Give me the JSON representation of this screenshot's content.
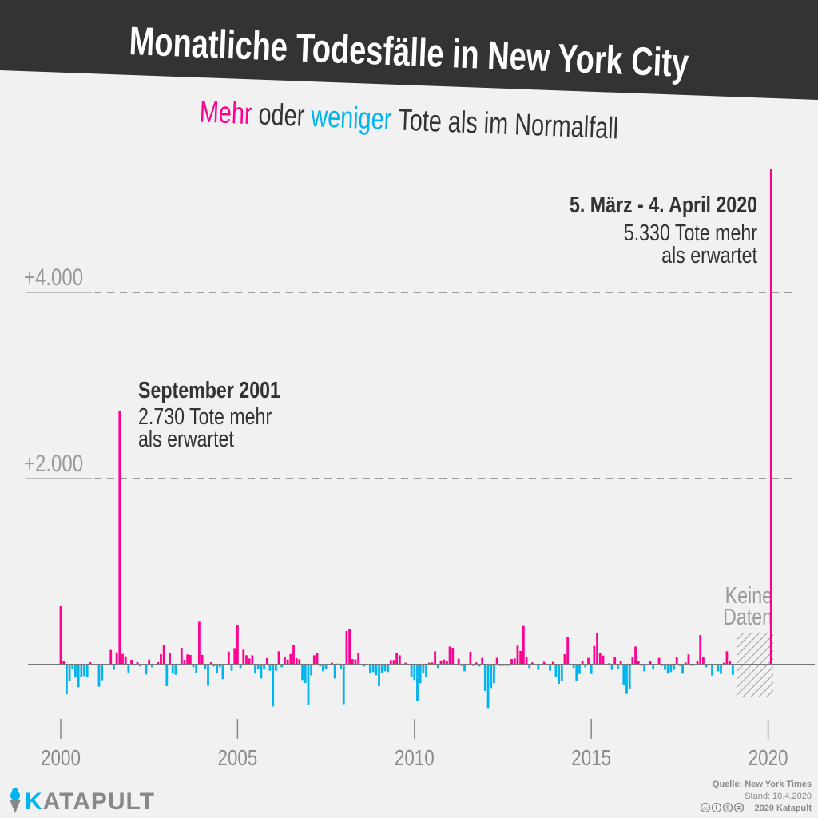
{
  "header": {
    "title": "Monatliche Todesfälle in New York City",
    "subtitle_more": "Mehr",
    "subtitle_or": "oder",
    "subtitle_less": "weniger",
    "subtitle_rest": "Tote als im Normalfall"
  },
  "colors": {
    "more": "#ff0090",
    "less": "#00b4f0",
    "header_bg": "#333333",
    "background": "#f1f1f1"
  },
  "chart_data": {
    "type": "bar",
    "title": "Monatliche Todesfälle in New York City",
    "subtitle": "Mehr oder weniger Tote als im Normalfall",
    "x_start_month": "2000-01",
    "x_interval": "month",
    "ylim": [
      -600,
      5400
    ],
    "y_ticks": [
      {
        "value": 2000,
        "label": "+2.000"
      },
      {
        "value": 4000,
        "label": "+4.000"
      }
    ],
    "x_ticks": [
      {
        "value": 2000,
        "label": "2000"
      },
      {
        "value": 2005,
        "label": "2005"
      },
      {
        "value": 2010,
        "label": "2010"
      },
      {
        "value": 2015,
        "label": "2015"
      },
      {
        "value": 2020,
        "label": "2020"
      }
    ],
    "grid": "dashed horizontal at y ticks",
    "values": [
      635,
      40,
      -318,
      -172,
      -46,
      -140,
      -243,
      -137,
      -123,
      -137,
      26,
      0,
      0,
      -237,
      -169,
      0,
      0,
      157,
      -57,
      131,
      2730,
      114,
      89,
      -94,
      51,
      -10,
      26,
      -20,
      5,
      -106,
      54,
      -29,
      0,
      26,
      111,
      211,
      -231,
      120,
      -97,
      -109,
      0,
      180,
      51,
      109,
      103,
      -29,
      -86,
      460,
      103,
      -51,
      -229,
      26,
      -20,
      -86,
      -29,
      -157,
      0,
      140,
      -66,
      177,
      420,
      -37,
      160,
      100,
      65,
      100,
      -97,
      -51,
      -149,
      -43,
      70,
      -66,
      -450,
      -66,
      143,
      -29,
      86,
      54,
      114,
      214,
      69,
      57,
      -166,
      -197,
      -429,
      -117,
      100,
      129,
      -20,
      -72,
      -46,
      0,
      20,
      -149,
      11,
      -46,
      -426,
      360,
      386,
      60,
      54,
      129,
      0,
      -20,
      0,
      -86,
      -80,
      -114,
      -232,
      -94,
      -72,
      -80,
      49,
      49,
      129,
      100,
      0,
      20,
      0,
      -129,
      -166,
      -395,
      -200,
      -86,
      -129,
      20,
      23,
      143,
      -37,
      45,
      54,
      37,
      194,
      180,
      0,
      63,
      -14,
      -72,
      0,
      137,
      -14,
      23,
      -20,
      72,
      -283,
      -466,
      -252,
      -200,
      72,
      -14,
      -14,
      -14,
      -14,
      60,
      66,
      203,
      146,
      415,
      86,
      -37,
      23,
      0,
      -57,
      0,
      29,
      0,
      -66,
      29,
      -129,
      -206,
      -180,
      111,
      300,
      0,
      -37,
      -172,
      -100,
      37,
      -29,
      72,
      -100,
      200,
      335,
      120,
      97,
      0,
      14,
      -57,
      86,
      -43,
      37,
      -214,
      -314,
      -266,
      86,
      194,
      37,
      -14,
      -72,
      0,
      37,
      -46,
      0,
      72,
      -14,
      -57,
      -97,
      -80,
      -57,
      80,
      -14,
      -97,
      23,
      109,
      -14,
      0,
      37,
      317,
      77,
      -29,
      0,
      -117,
      0,
      -72,
      -100,
      20,
      143,
      43,
      -111,
      null,
      null,
      null,
      null,
      null,
      null,
      null,
      null,
      null,
      null,
      null,
      null,
      5330
    ],
    "no_data_label": [
      "Keine",
      "Daten"
    ],
    "annotations": [
      {
        "month": "2001-09",
        "value": 2730,
        "title": "September 2001",
        "line1": "2.730 Tote mehr",
        "line2": "als erwartet"
      },
      {
        "month": "2020-03",
        "value": 5330,
        "title": "5. März - 4. April 2020",
        "line1": "5.330 Tote mehr",
        "line2": "als erwartet"
      }
    ]
  },
  "footer": {
    "source": "Quelle: New York Times",
    "date": "Stand: 10.4.2020",
    "license_icons": [
      "cc-icon",
      "by-icon",
      "nc-icon",
      "nd-icon"
    ],
    "copyright": "2020 Katapult",
    "logo_k": "K",
    "logo_rest": "ATAPULT"
  }
}
